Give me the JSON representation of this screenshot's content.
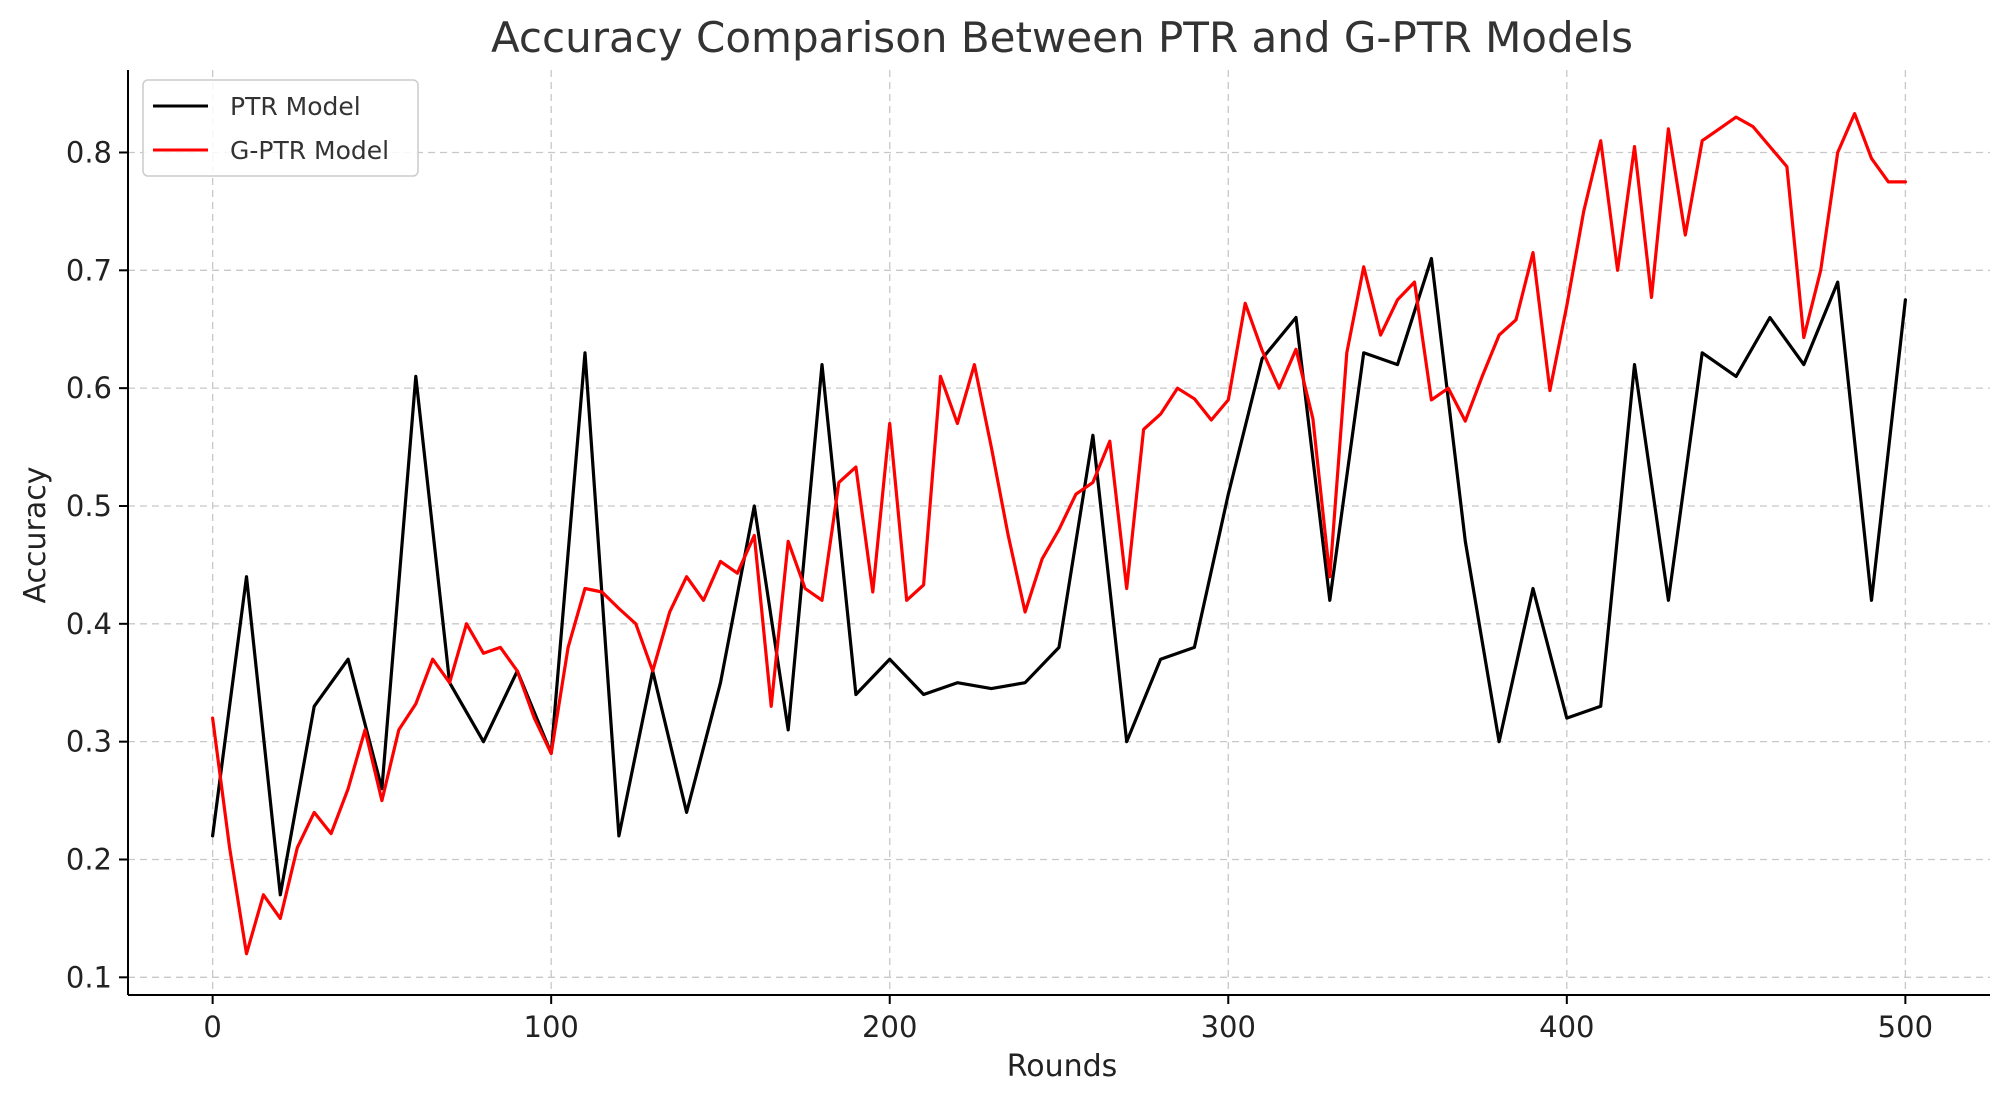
{
  "chart_data": {
    "type": "line",
    "title": "Accuracy Comparison Between PTR and G-PTR Models",
    "xlabel": "Rounds",
    "ylabel": "Accuracy",
    "xlim": [
      -25,
      525
    ],
    "ylim": [
      0.085,
      0.87
    ],
    "xticks": [
      0,
      100,
      200,
      300,
      400,
      500
    ],
    "yticks": [
      0.1,
      0.2,
      0.3,
      0.4,
      0.5,
      0.6,
      0.7,
      0.8
    ],
    "grid": true,
    "legend_position": "top-left",
    "series": [
      {
        "name": "PTR Model",
        "color": "#000000",
        "x": [
          0,
          10,
          20,
          30,
          40,
          50,
          60,
          70,
          80,
          90,
          100,
          110,
          120,
          130,
          140,
          150,
          160,
          170,
          180,
          190,
          200,
          210,
          220,
          230,
          240,
          250,
          260,
          270,
          280,
          290,
          300,
          310,
          320,
          330,
          340,
          350,
          360,
          370,
          380,
          390,
          400,
          410,
          420,
          430,
          440,
          450,
          460,
          470,
          480,
          490,
          500
        ],
        "y": [
          0.22,
          0.44,
          0.17,
          0.33,
          0.37,
          0.26,
          0.61,
          0.35,
          0.3,
          0.36,
          0.29,
          0.63,
          0.22,
          0.36,
          0.24,
          0.35,
          0.5,
          0.31,
          0.62,
          0.34,
          0.37,
          0.34,
          0.35,
          0.345,
          0.35,
          0.38,
          0.56,
          0.3,
          0.37,
          0.38,
          0.51,
          0.625,
          0.66,
          0.42,
          0.63,
          0.62,
          0.71,
          0.47,
          0.3,
          0.43,
          0.32,
          0.33,
          0.62,
          0.42,
          0.63,
          0.61,
          0.66,
          0.62,
          0.69,
          0.42,
          0.675
        ]
      },
      {
        "name": "G-PTR Model",
        "color": "#ff0000",
        "x": [
          0,
          5,
          10,
          15,
          20,
          25,
          30,
          35,
          40,
          45,
          50,
          55,
          60,
          65,
          70,
          75,
          80,
          85,
          90,
          95,
          100,
          105,
          110,
          115,
          120,
          125,
          130,
          135,
          140,
          145,
          150,
          155,
          160,
          165,
          170,
          175,
          180,
          185,
          190,
          195,
          200,
          205,
          210,
          215,
          220,
          225,
          230,
          235,
          240,
          245,
          250,
          255,
          260,
          265,
          270,
          275,
          280,
          285,
          290,
          295,
          300,
          305,
          310,
          315,
          320,
          325,
          330,
          335,
          340,
          345,
          350,
          355,
          360,
          365,
          370,
          375,
          380,
          385,
          390,
          395,
          400,
          405,
          410,
          415,
          420,
          425,
          430,
          435,
          440,
          445,
          450,
          455,
          460,
          465,
          470,
          475,
          480,
          485,
          490,
          495,
          500
        ],
        "y": [
          0.32,
          0.21,
          0.12,
          0.17,
          0.15,
          0.21,
          0.24,
          0.222,
          0.26,
          0.31,
          0.25,
          0.31,
          0.332,
          0.37,
          0.35,
          0.4,
          0.375,
          0.38,
          0.36,
          0.32,
          0.29,
          0.38,
          0.43,
          0.427,
          0.413,
          0.4,
          0.36,
          0.41,
          0.44,
          0.42,
          0.453,
          0.443,
          0.475,
          0.33,
          0.47,
          0.43,
          0.42,
          0.52,
          0.533,
          0.427,
          0.57,
          0.42,
          0.433,
          0.61,
          0.57,
          0.62,
          0.55,
          0.475,
          0.41,
          0.455,
          0.48,
          0.51,
          0.52,
          0.555,
          0.43,
          0.565,
          0.578,
          0.6,
          0.591,
          0.573,
          0.59,
          0.672,
          0.632,
          0.6,
          0.633,
          0.574,
          0.44,
          0.63,
          0.703,
          0.645,
          0.675,
          0.69,
          0.59,
          0.6,
          0.572,
          0.61,
          0.645,
          0.658,
          0.715,
          0.598,
          0.67,
          0.75,
          0.81,
          0.7,
          0.805,
          0.677,
          0.82,
          0.73,
          0.81,
          0.82,
          0.83,
          0.822,
          0.805,
          0.788,
          0.643,
          0.7,
          0.8,
          0.833,
          0.795,
          0.775,
          0.775
        ]
      }
    ]
  }
}
